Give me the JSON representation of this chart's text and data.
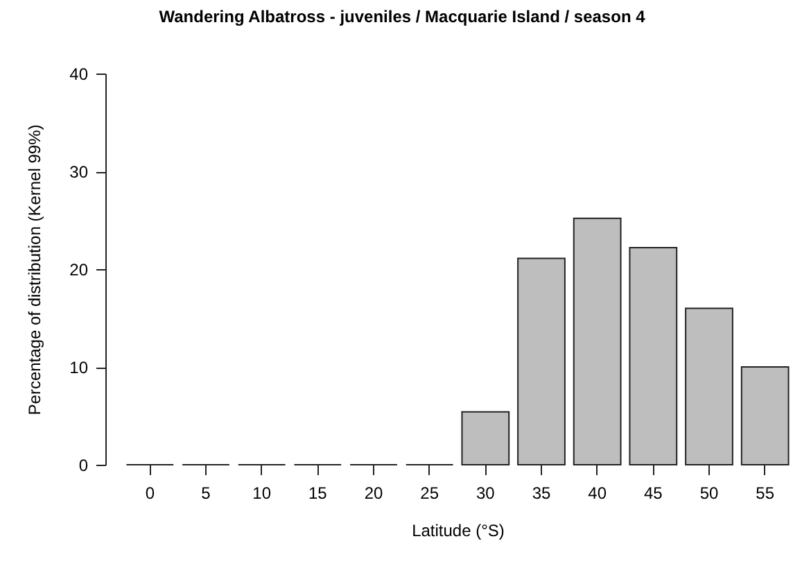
{
  "chart_data": {
    "type": "bar",
    "title": "Wandering Albatross - juveniles / Macquarie Island / season 4",
    "xlabel": "Latitude (°S)",
    "ylabel": "Percentage of distribution (Kernel 99%)",
    "categories": [
      "0",
      "5",
      "10",
      "15",
      "20",
      "25",
      "30",
      "35",
      "40",
      "45",
      "50",
      "55"
    ],
    "values": [
      0,
      0,
      0,
      0,
      0,
      0,
      5.4,
      21.1,
      25.2,
      22.2,
      16.0,
      10.0
    ],
    "color": "#bebebe",
    "ylim": [
      0,
      40
    ],
    "yticks": [
      0,
      10,
      20,
      30,
      40
    ],
    "grid": false
  }
}
